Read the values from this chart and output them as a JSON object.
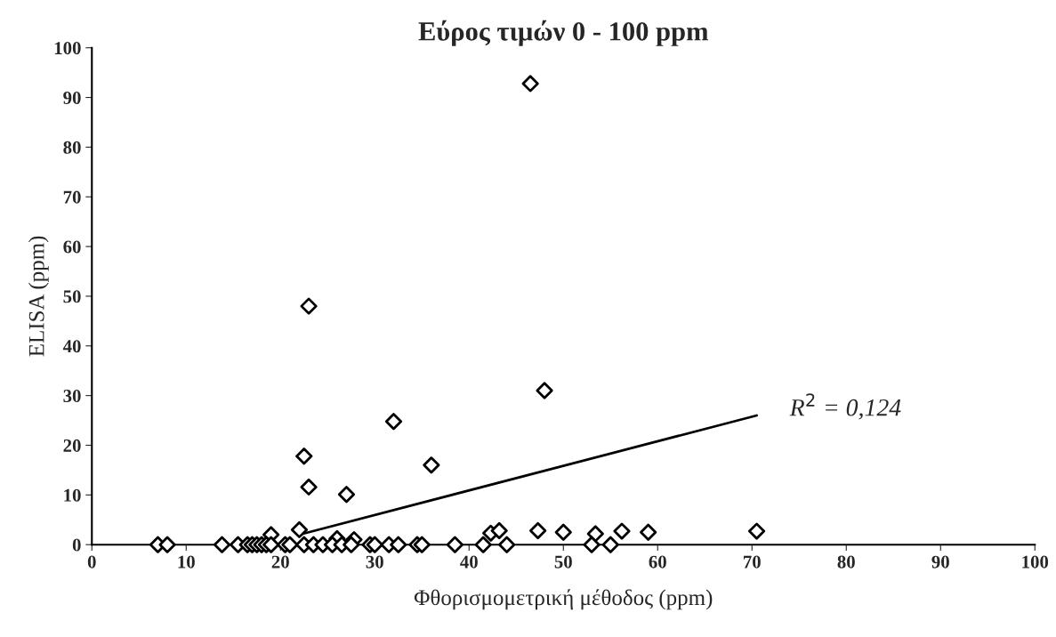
{
  "chart_data": {
    "type": "scatter",
    "title": "Εύρος τιμών 0 - 100 ppm",
    "xlabel": "Φθορισμομετρική μέθοδος (ppm)",
    "ylabel": "ELISA (ppm)",
    "series": [
      {
        "color": "#000000",
        "marker": "diamond",
        "x": [
          46.5,
          23,
          48,
          32,
          22.5,
          36,
          23,
          27,
          22,
          19,
          47.3,
          50,
          53.4,
          56.2,
          59,
          70.5,
          42.3,
          43.2,
          26,
          27.8,
          7,
          8,
          13.8,
          15.5,
          16.5,
          17,
          17.5,
          18,
          18.5,
          19,
          20.5,
          21,
          22.5,
          23.5,
          24.5,
          25.5,
          26.5,
          27.5,
          29.5,
          30,
          31.5,
          32.5,
          34.5,
          35,
          38.5,
          41.5,
          44,
          53,
          55
        ],
        "values": [
          92.8,
          48,
          31,
          24.8,
          17.8,
          16,
          11.6,
          10.1,
          3,
          2,
          2.8,
          2.5,
          2.2,
          2.7,
          2.5,
          2.7,
          2.3,
          2.8,
          1.2,
          1,
          0,
          0,
          0,
          0,
          0,
          0,
          0,
          0,
          0,
          0,
          0,
          0,
          0,
          0,
          0,
          0,
          0,
          0,
          0,
          0,
          0,
          0,
          0,
          0,
          0,
          0,
          0,
          0,
          0
        ]
      },
      {
        "type": "line",
        "color": "#000000",
        "x": [
          22,
          70.5
        ],
        "values": [
          2,
          26
        ]
      }
    ],
    "annotations": [
      "R$^{2}$ = 0,124"
    ],
    "xlim": [
      0,
      100
    ],
    "xticks": [
      0,
      10,
      20,
      30,
      40,
      50,
      60,
      70,
      80,
      90,
      100
    ],
    "ylim": [
      0,
      100
    ],
    "yticks": [
      0,
      10,
      20,
      30,
      40,
      50,
      60,
      70,
      80,
      90,
      100
    ],
    "grid": false,
    "legend": false
  }
}
